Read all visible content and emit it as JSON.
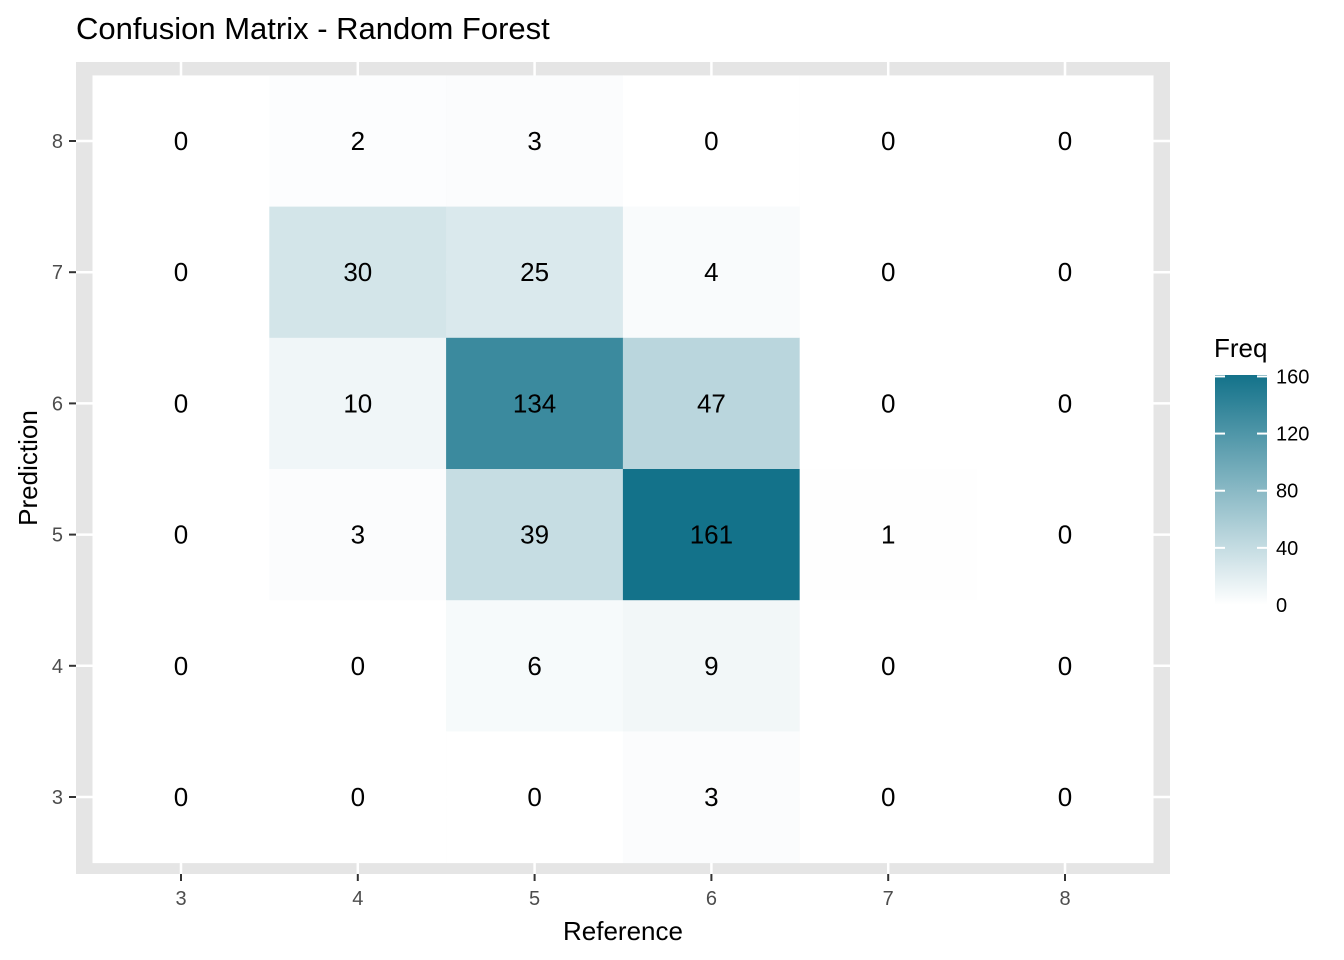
{
  "chart_data": {
    "type": "heatmap",
    "title": "Confusion Matrix - Random Forest",
    "xlabel": "Reference",
    "ylabel": "Prediction",
    "x_categories": [
      "3",
      "4",
      "5",
      "6",
      "7",
      "8"
    ],
    "y_categories": [
      "3",
      "4",
      "5",
      "6",
      "7",
      "8"
    ],
    "cells": [
      {
        "reference": "3",
        "prediction": "8",
        "freq": 0
      },
      {
        "reference": "4",
        "prediction": "8",
        "freq": 2
      },
      {
        "reference": "5",
        "prediction": "8",
        "freq": 3
      },
      {
        "reference": "6",
        "prediction": "8",
        "freq": 0
      },
      {
        "reference": "7",
        "prediction": "8",
        "freq": 0
      },
      {
        "reference": "8",
        "prediction": "8",
        "freq": 0
      },
      {
        "reference": "3",
        "prediction": "7",
        "freq": 0
      },
      {
        "reference": "4",
        "prediction": "7",
        "freq": 30
      },
      {
        "reference": "5",
        "prediction": "7",
        "freq": 25
      },
      {
        "reference": "6",
        "prediction": "7",
        "freq": 4
      },
      {
        "reference": "7",
        "prediction": "7",
        "freq": 0
      },
      {
        "reference": "8",
        "prediction": "7",
        "freq": 0
      },
      {
        "reference": "3",
        "prediction": "6",
        "freq": 0
      },
      {
        "reference": "4",
        "prediction": "6",
        "freq": 10
      },
      {
        "reference": "5",
        "prediction": "6",
        "freq": 134
      },
      {
        "reference": "6",
        "prediction": "6",
        "freq": 47
      },
      {
        "reference": "7",
        "prediction": "6",
        "freq": 0
      },
      {
        "reference": "8",
        "prediction": "6",
        "freq": 0
      },
      {
        "reference": "3",
        "prediction": "5",
        "freq": 0
      },
      {
        "reference": "4",
        "prediction": "5",
        "freq": 3
      },
      {
        "reference": "5",
        "prediction": "5",
        "freq": 39
      },
      {
        "reference": "6",
        "prediction": "5",
        "freq": 161
      },
      {
        "reference": "7",
        "prediction": "5",
        "freq": 1
      },
      {
        "reference": "8",
        "prediction": "5",
        "freq": 0
      },
      {
        "reference": "3",
        "prediction": "4",
        "freq": 0
      },
      {
        "reference": "4",
        "prediction": "4",
        "freq": 0
      },
      {
        "reference": "5",
        "prediction": "4",
        "freq": 6
      },
      {
        "reference": "6",
        "prediction": "4",
        "freq": 9
      },
      {
        "reference": "7",
        "prediction": "4",
        "freq": 0
      },
      {
        "reference": "8",
        "prediction": "4",
        "freq": 0
      },
      {
        "reference": "3",
        "prediction": "3",
        "freq": 0
      },
      {
        "reference": "4",
        "prediction": "3",
        "freq": 0
      },
      {
        "reference": "5",
        "prediction": "3",
        "freq": 0
      },
      {
        "reference": "6",
        "prediction": "3",
        "freq": 3
      },
      {
        "reference": "7",
        "prediction": "3",
        "freq": 0
      },
      {
        "reference": "8",
        "prediction": "3",
        "freq": 0
      }
    ],
    "legend": {
      "title": "Freq",
      "position": "right",
      "ticks": [
        "0",
        "40",
        "80",
        "120",
        "160"
      ],
      "range": [
        0,
        161
      ],
      "color_low": "#ffffff",
      "color_high": "#13728a"
    },
    "colors": {
      "panel_border": "#e5e5e5",
      "grid": "#ffffff",
      "text": "#000000",
      "tick_text": "#4d4d4d"
    }
  }
}
